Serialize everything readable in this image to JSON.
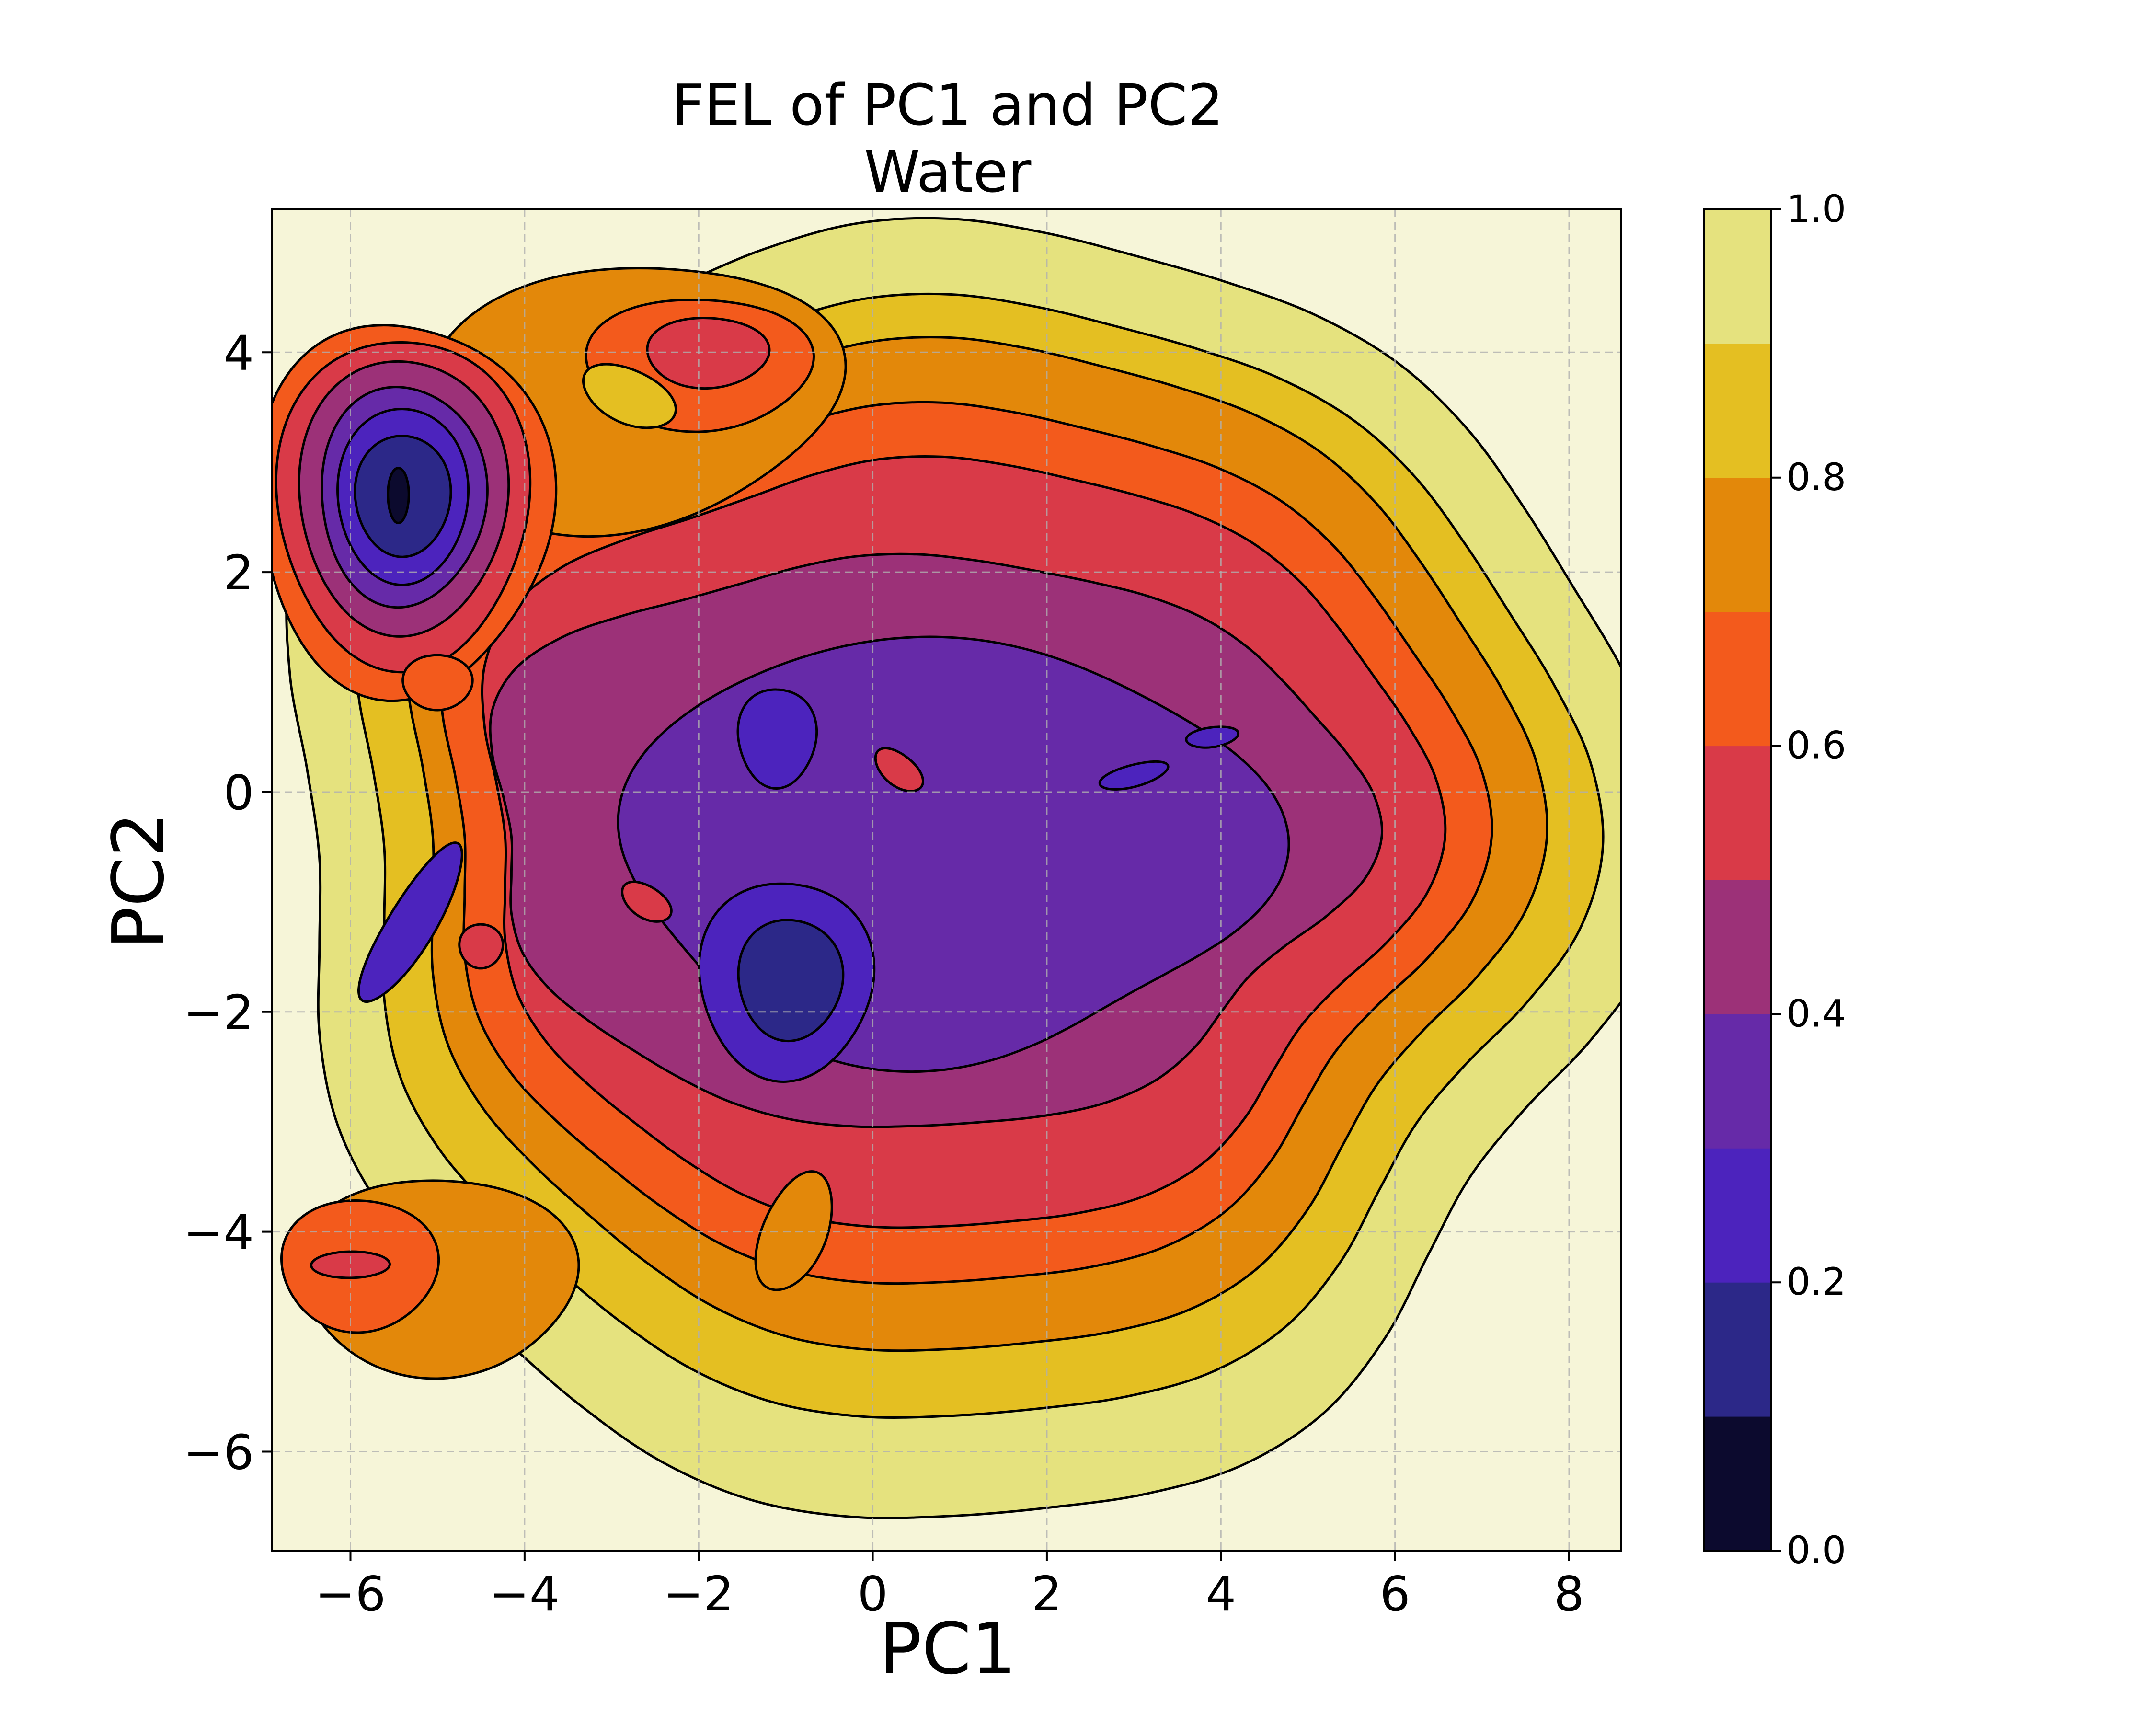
{
  "chart_data": {
    "type": "contour",
    "title": "FEL of PC1 and PC2",
    "subtitle": "Water",
    "xlabel": "PC1",
    "ylabel": "PC2",
    "xlim": [
      -6.9,
      8.6
    ],
    "ylim": [
      -6.9,
      5.3
    ],
    "x_ticks": [
      -6,
      -4,
      -2,
      0,
      2,
      4,
      6,
      8
    ],
    "x_tick_labels": [
      "−6",
      "−4",
      "−2",
      "0",
      "2",
      "4",
      "6",
      "8"
    ],
    "y_ticks": [
      -6,
      -4,
      -2,
      0,
      2,
      4
    ],
    "y_tick_labels": [
      "−6",
      "−4",
      "−2",
      "0",
      "2",
      "4"
    ],
    "grid": true,
    "colorbar": {
      "min": 0.0,
      "max": 1.0,
      "levels": [
        0.0,
        0.1,
        0.2,
        0.3,
        0.4,
        0.5,
        0.6,
        0.7,
        0.8,
        0.9,
        1.0
      ],
      "colors": [
        "#0c0a2e",
        "#2c2888",
        "#4c23bd",
        "#662aa8",
        "#9c3178",
        "#d93a48",
        "#f35a1c",
        "#e3880a",
        "#e4bf22",
        "#e5e27e",
        "#f6f5d8"
      ],
      "ticks": [
        0.0,
        0.2,
        0.4,
        0.6,
        0.8,
        1.0
      ],
      "tick_labels": [
        "0.0",
        "0.2",
        "0.4",
        "0.6",
        "0.8",
        "1.0"
      ]
    },
    "minima": [
      {
        "name": "basin-upper-left",
        "x": -5.4,
        "y": 2.7,
        "value": 0.0
      },
      {
        "name": "basin-lower-center",
        "x": -0.95,
        "y": -1.7,
        "value": 0.1
      },
      {
        "name": "basin-center",
        "x": -1.1,
        "y": 0.5,
        "value": 0.2
      },
      {
        "name": "basin-left",
        "x": -5.3,
        "y": -1.2,
        "value": 0.3
      },
      {
        "name": "basin-right",
        "x": 3.0,
        "y": 0.1,
        "value": 0.2
      },
      {
        "name": "basin-right-2",
        "x": 3.9,
        "y": 0.5,
        "value": 0.2
      }
    ]
  }
}
